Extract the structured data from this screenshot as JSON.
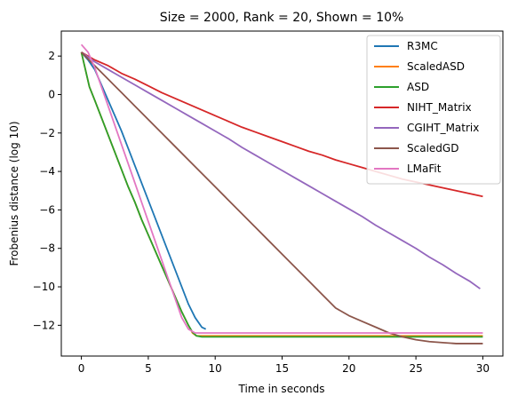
{
  "chart_data": {
    "type": "line",
    "title": "Size = 2000, Rank = 20, Shown = 10%",
    "xlabel": "Time in seconds",
    "ylabel": "Frobenius distance (log 10)",
    "xlim": [
      -1.5,
      31.5
    ],
    "ylim": [
      -13.6,
      3.3
    ],
    "xticks": [
      0,
      5,
      10,
      15,
      20,
      25,
      30
    ],
    "yticks": [
      -12,
      -10,
      -8,
      -6,
      -4,
      -2,
      0,
      2
    ],
    "grid": false,
    "legend_position": "top-right",
    "series": [
      {
        "name": "R3MC",
        "color": "#1f77b4",
        "points": [
          [
            0,
            2.2
          ],
          [
            0.5,
            1.8
          ],
          [
            1,
            1.3
          ],
          [
            1.5,
            0.5
          ],
          [
            2,
            -0.3
          ],
          [
            2.5,
            -1.1
          ],
          [
            3,
            -1.9
          ],
          [
            3.5,
            -2.8
          ],
          [
            4,
            -3.7
          ],
          [
            4.5,
            -4.6
          ],
          [
            5,
            -5.5
          ],
          [
            5.5,
            -6.4
          ],
          [
            6,
            -7.3
          ],
          [
            6.5,
            -8.2
          ],
          [
            7,
            -9.1
          ],
          [
            7.5,
            -10.0
          ],
          [
            8,
            -10.9
          ],
          [
            8.5,
            -11.6
          ],
          [
            9,
            -12.1
          ],
          [
            9.3,
            -12.2
          ]
        ]
      },
      {
        "name": "ScaledASD",
        "color": "#ff7f0e",
        "points": [
          [
            0,
            2.2
          ],
          [
            0.3,
            1.3
          ],
          [
            0.6,
            0.4
          ],
          [
            1,
            -0.3
          ],
          [
            1.5,
            -1.2
          ],
          [
            2,
            -2.1
          ],
          [
            2.5,
            -3.0
          ],
          [
            3,
            -3.9
          ],
          [
            3.5,
            -4.8
          ],
          [
            4,
            -5.6
          ],
          [
            4.5,
            -6.5
          ],
          [
            5,
            -7.3
          ],
          [
            5.5,
            -8.1
          ],
          [
            6,
            -8.9
          ],
          [
            6.5,
            -9.7
          ],
          [
            7,
            -10.5
          ],
          [
            7.5,
            -11.3
          ],
          [
            8,
            -12.0
          ],
          [
            8.3,
            -12.4
          ],
          [
            8.6,
            -12.55
          ],
          [
            9,
            -12.55
          ],
          [
            15,
            -12.55
          ],
          [
            20,
            -12.55
          ],
          [
            25,
            -12.55
          ],
          [
            30,
            -12.55
          ]
        ]
      },
      {
        "name": "ASD",
        "color": "#2ca02c",
        "points": [
          [
            0,
            2.2
          ],
          [
            0.3,
            1.3
          ],
          [
            0.6,
            0.4
          ],
          [
            1,
            -0.3
          ],
          [
            1.5,
            -1.2
          ],
          [
            2,
            -2.1
          ],
          [
            2.5,
            -3.0
          ],
          [
            3,
            -3.9
          ],
          [
            3.5,
            -4.8
          ],
          [
            4,
            -5.6
          ],
          [
            4.5,
            -6.5
          ],
          [
            5,
            -7.3
          ],
          [
            5.5,
            -8.1
          ],
          [
            6,
            -8.9
          ],
          [
            6.5,
            -9.7
          ],
          [
            7,
            -10.5
          ],
          [
            7.5,
            -11.3
          ],
          [
            8,
            -12.0
          ],
          [
            8.3,
            -12.35
          ],
          [
            8.6,
            -12.55
          ],
          [
            9,
            -12.6
          ],
          [
            15,
            -12.6
          ],
          [
            20,
            -12.6
          ],
          [
            25,
            -12.6
          ],
          [
            30,
            -12.6
          ]
        ]
      },
      {
        "name": "NIHT_Matrix",
        "color": "#d62728",
        "points": [
          [
            0,
            2.2
          ],
          [
            1,
            1.8
          ],
          [
            2,
            1.5
          ],
          [
            3,
            1.1
          ],
          [
            4,
            0.8
          ],
          [
            5,
            0.45
          ],
          [
            6,
            0.1
          ],
          [
            7,
            -0.2
          ],
          [
            8,
            -0.5
          ],
          [
            9,
            -0.8
          ],
          [
            10,
            -1.1
          ],
          [
            11,
            -1.4
          ],
          [
            12,
            -1.7
          ],
          [
            13,
            -1.95
          ],
          [
            14,
            -2.2
          ],
          [
            15,
            -2.45
          ],
          [
            16,
            -2.7
          ],
          [
            17,
            -2.95
          ],
          [
            18,
            -3.15
          ],
          [
            19,
            -3.4
          ],
          [
            20,
            -3.6
          ],
          [
            21,
            -3.8
          ],
          [
            22,
            -4.0
          ],
          [
            23,
            -4.2
          ],
          [
            24,
            -4.4
          ],
          [
            25,
            -4.55
          ],
          [
            26,
            -4.7
          ],
          [
            27,
            -4.85
          ],
          [
            28,
            -5.0
          ],
          [
            29,
            -5.15
          ],
          [
            30,
            -5.3
          ]
        ]
      },
      {
        "name": "CGIHT_Matrix",
        "color": "#9467bd",
        "points": [
          [
            0,
            2.2
          ],
          [
            1,
            1.7
          ],
          [
            2,
            1.3
          ],
          [
            3,
            0.9
          ],
          [
            4,
            0.5
          ],
          [
            5,
            0.1
          ],
          [
            6,
            -0.3
          ],
          [
            7,
            -0.7
          ],
          [
            8,
            -1.1
          ],
          [
            9,
            -1.5
          ],
          [
            10,
            -1.9
          ],
          [
            11,
            -2.3
          ],
          [
            12,
            -2.75
          ],
          [
            13,
            -3.15
          ],
          [
            14,
            -3.55
          ],
          [
            15,
            -3.95
          ],
          [
            16,
            -4.35
          ],
          [
            17,
            -4.75
          ],
          [
            18,
            -5.15
          ],
          [
            19,
            -5.55
          ],
          [
            20,
            -5.95
          ],
          [
            21,
            -6.35
          ],
          [
            22,
            -6.8
          ],
          [
            23,
            -7.2
          ],
          [
            24,
            -7.6
          ],
          [
            25,
            -8.0
          ],
          [
            26,
            -8.45
          ],
          [
            27,
            -8.85
          ],
          [
            28,
            -9.3
          ],
          [
            29,
            -9.7
          ],
          [
            29.8,
            -10.1
          ]
        ]
      },
      {
        "name": "ScaledGD",
        "color": "#8c564b",
        "points": [
          [
            0,
            2.2
          ],
          [
            1,
            1.5
          ],
          [
            2,
            0.8
          ],
          [
            3,
            0.1
          ],
          [
            4,
            -0.6
          ],
          [
            5,
            -1.3
          ],
          [
            6,
            -2.0
          ],
          [
            7,
            -2.7
          ],
          [
            8,
            -3.4
          ],
          [
            9,
            -4.1
          ],
          [
            10,
            -4.8
          ],
          [
            11,
            -5.5
          ],
          [
            12,
            -6.2
          ],
          [
            13,
            -6.9
          ],
          [
            14,
            -7.6
          ],
          [
            15,
            -8.3
          ],
          [
            16,
            -9.0
          ],
          [
            17,
            -9.7
          ],
          [
            18,
            -10.4
          ],
          [
            19,
            -11.1
          ],
          [
            20,
            -11.5
          ],
          [
            21,
            -11.8
          ],
          [
            22,
            -12.1
          ],
          [
            23,
            -12.4
          ],
          [
            24,
            -12.6
          ],
          [
            25,
            -12.75
          ],
          [
            26,
            -12.85
          ],
          [
            27,
            -12.9
          ],
          [
            28,
            -12.95
          ],
          [
            29,
            -12.95
          ],
          [
            30,
            -12.95
          ]
        ]
      },
      {
        "name": "LMaFit",
        "color": "#e377c2",
        "points": [
          [
            0,
            2.6
          ],
          [
            0.5,
            2.2
          ],
          [
            1,
            1.4
          ],
          [
            1.5,
            0.4
          ],
          [
            2,
            -0.6
          ],
          [
            2.5,
            -1.6
          ],
          [
            3,
            -2.6
          ],
          [
            3.5,
            -3.6
          ],
          [
            4,
            -4.6
          ],
          [
            4.5,
            -5.6
          ],
          [
            5,
            -6.6
          ],
          [
            5.5,
            -7.6
          ],
          [
            6,
            -8.6
          ],
          [
            6.5,
            -9.6
          ],
          [
            7,
            -10.6
          ],
          [
            7.5,
            -11.6
          ],
          [
            8,
            -12.2
          ],
          [
            8.5,
            -12.4
          ],
          [
            9,
            -12.4
          ],
          [
            15,
            -12.4
          ],
          [
            20,
            -12.4
          ],
          [
            25,
            -12.4
          ],
          [
            30,
            -12.4
          ]
        ]
      }
    ]
  }
}
